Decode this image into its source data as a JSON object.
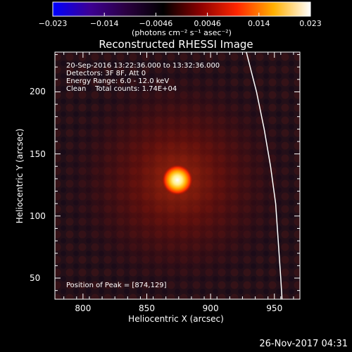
{
  "colorbar": {
    "ticks": [
      "−0.023",
      "−0.014",
      "−0.0046",
      "0.0046",
      "0.014",
      "0.023"
    ],
    "units": "(photons cm⁻² s⁻¹ asec⁻²)",
    "colors": [
      "#0000ff",
      "#3d0094",
      "#2a0040",
      "#000000",
      "#8b0000",
      "#ff2600",
      "#ffb000",
      "#ffffff"
    ]
  },
  "title": "Reconstructed RHESSI Image",
  "annotations": {
    "time": "20-Sep-2016 13:22:36.000 to 13:32:36.000",
    "detectors": "Detectors: 3F 8F, Att 0",
    "energy": "Energy Range: 6.0 - 12.0 keV",
    "clean": "Clean    Total counts: 1.74E+04",
    "peak": "Position of Peak = [874,129]"
  },
  "timestamp": "26-Nov-2017 04:31",
  "chart_data": {
    "type": "heatmap",
    "title": "Reconstructed RHESSI Image",
    "xlabel": "Heliocentric X (arcsec)",
    "ylabel": "Heliocentric Y (arcsec)",
    "xlim": [
      778,
      970
    ],
    "ylim": [
      33,
      232
    ],
    "xticks": [
      800,
      850,
      900,
      950
    ],
    "yticks": [
      50,
      100,
      150,
      200
    ],
    "color_range": [
      -0.023,
      0.023
    ],
    "peak_position": [
      874,
      129
    ],
    "limb_curve": [
      [
        928,
        232
      ],
      [
        936,
        200
      ],
      [
        942,
        170
      ],
      [
        947,
        140
      ],
      [
        951,
        110
      ],
      [
        953,
        80
      ],
      [
        955,
        50
      ],
      [
        956,
        33
      ]
    ]
  }
}
